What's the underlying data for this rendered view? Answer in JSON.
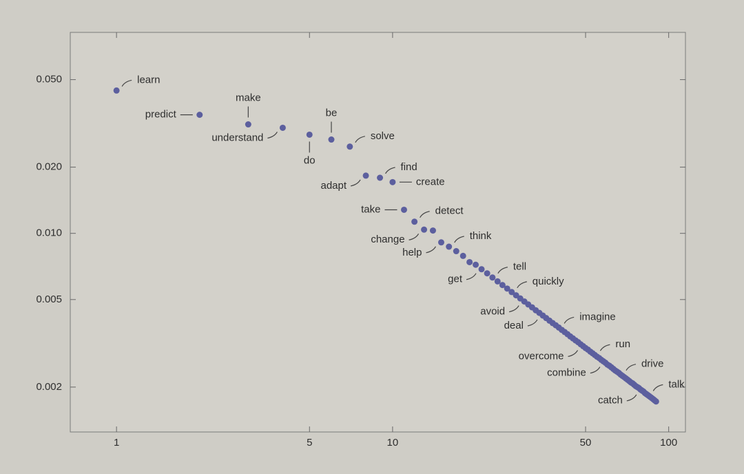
{
  "chart_data": {
    "type": "scatter",
    "x": [
      1,
      2,
      3,
      4,
      5,
      6,
      7,
      8,
      9,
      10,
      11,
      12,
      13,
      14,
      15,
      16,
      17,
      18,
      19,
      20,
      21,
      22,
      23,
      24,
      25,
      26,
      27,
      28,
      29,
      30,
      31,
      32,
      33,
      34,
      35,
      36,
      37,
      38,
      39,
      40,
      41,
      42,
      43,
      44,
      45,
      46,
      47,
      48,
      49,
      50,
      51,
      52,
      53,
      54,
      55,
      56,
      57,
      58,
      59,
      60,
      61,
      62,
      63,
      64,
      65,
      66,
      67,
      68,
      69,
      70,
      71,
      72,
      73,
      74,
      75,
      76,
      77,
      78,
      79,
      80,
      81,
      82,
      83,
      84,
      85,
      86,
      87,
      88,
      89,
      90
    ],
    "values": [
      0.0446,
      0.0346,
      0.0313,
      0.0302,
      0.0281,
      0.0267,
      0.0248,
      0.0183,
      0.0179,
      0.0171,
      0.0128,
      0.0113,
      0.0104,
      0.0103,
      0.0091,
      0.0087,
      0.0083,
      0.0079,
      0.0074,
      0.0072,
      0.00687,
      0.00658,
      0.0063,
      0.00605,
      0.00582,
      0.00561,
      0.00541,
      0.00523,
      0.00506,
      0.0049,
      0.00475,
      0.00461,
      0.00447,
      0.00435,
      0.00423,
      0.00412,
      0.00401,
      0.00391,
      0.00382,
      0.00373,
      0.00364,
      0.00356,
      0.00348,
      0.0034,
      0.00333,
      0.00326,
      0.0032,
      0.00313,
      0.00307,
      0.00301,
      0.00296,
      0.0029,
      0.00285,
      0.0028,
      0.00275,
      0.00271,
      0.00266,
      0.00262,
      0.00258,
      0.00253,
      0.0025,
      0.00246,
      0.00242,
      0.00238,
      0.00235,
      0.00232,
      0.00228,
      0.00225,
      0.00222,
      0.00219,
      0.00216,
      0.00213,
      0.0021,
      0.00208,
      0.00205,
      0.00202,
      0.002,
      0.00198,
      0.00195,
      0.00193,
      0.00191,
      0.00188,
      0.00186,
      0.00184,
      0.00182,
      0.0018,
      0.00178,
      0.00176,
      0.00174,
      0.00172
    ],
    "labels": [
      "learn",
      "predict",
      "make",
      "understand",
      "do",
      "be",
      "solve",
      "adapt",
      "find",
      "create",
      "take",
      "detect",
      "change",
      null,
      "help",
      "think",
      null,
      null,
      null,
      null,
      "get",
      null,
      "tell",
      null,
      null,
      null,
      "quickly",
      null,
      null,
      "avoid",
      null,
      null,
      null,
      null,
      "deal",
      null,
      null,
      null,
      null,
      "imagine",
      null,
      null,
      null,
      null,
      null,
      null,
      null,
      null,
      "overcome",
      null,
      null,
      null,
      null,
      "run",
      null,
      null,
      null,
      null,
      "combine",
      null,
      null,
      null,
      null,
      null,
      null,
      null,
      "drive",
      null,
      null,
      null,
      null,
      null,
      null,
      null,
      null,
      null,
      null,
      null,
      null,
      "catch",
      null,
      null,
      null,
      "talk",
      null,
      null,
      null,
      null,
      null,
      null
    ],
    "color": "#5c5f9e",
    "log_x": true,
    "log_y": true,
    "xlim": [
      0.68,
      115
    ],
    "ylim": [
      0.00125,
      0.082
    ],
    "xticks": [
      1,
      5,
      10,
      50,
      100
    ],
    "yticks": [
      {
        "value": 0.05,
        "label": "0.050"
      },
      {
        "value": 0.02,
        "label": "0.020"
      },
      {
        "value": 0.01,
        "label": "0.010"
      },
      0.005,
      0.002
    ]
  }
}
